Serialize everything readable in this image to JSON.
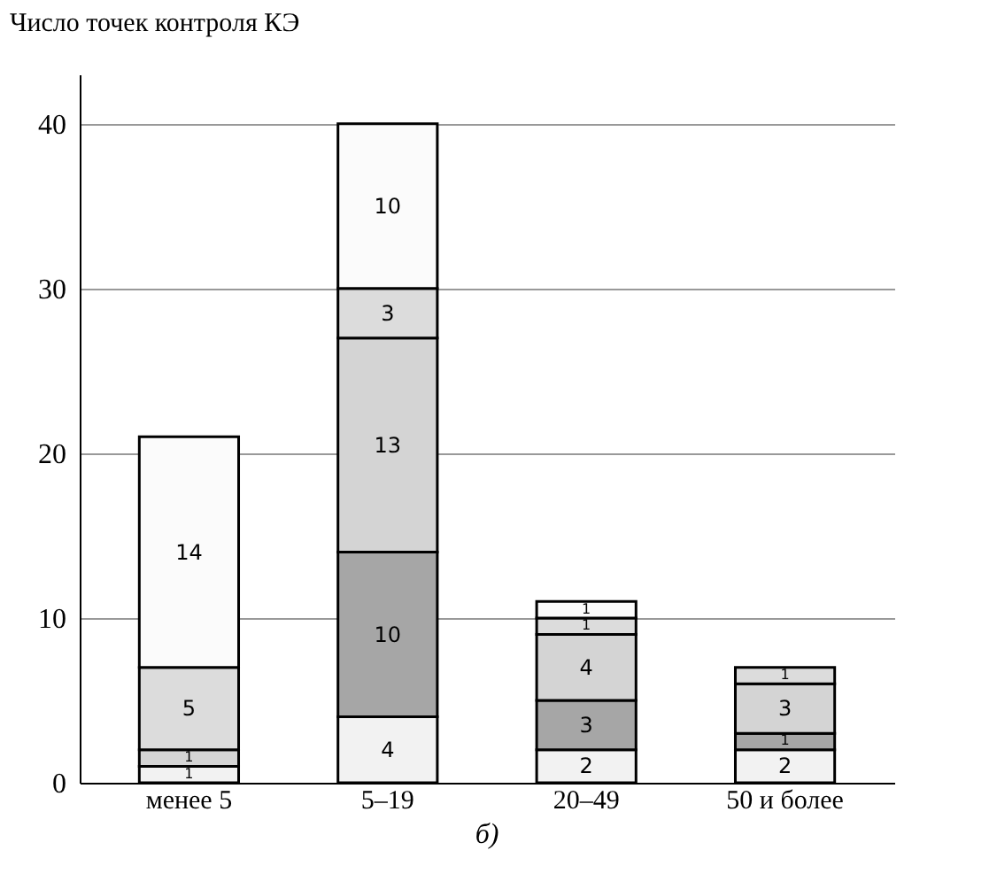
{
  "chart_data": {
    "type": "bar",
    "stacked": true,
    "ylabel": "Число точек контроля КЭ",
    "annotations": [
      "б)"
    ],
    "categories": [
      "менее 5",
      "5–19",
      "20–49",
      "50 и более"
    ],
    "series": [
      {
        "color": "#f2f2f2",
        "values": [
          1,
          4,
          2,
          2
        ]
      },
      {
        "color": "#a6a6a6",
        "values": [
          null,
          10,
          3,
          1
        ]
      },
      {
        "color": "#d4d4d4",
        "values": [
          1,
          13,
          4,
          3
        ]
      },
      {
        "color": "#dcdcdc",
        "values": [
          5,
          3,
          1,
          1
        ]
      },
      {
        "color": "#fbfbfb",
        "values": [
          14,
          10,
          1,
          null
        ]
      }
    ],
    "data_labels": true,
    "ylim": [
      0,
      43
    ],
    "yticks": [
      0,
      10,
      20,
      30,
      40
    ],
    "grid": "y",
    "legend": false
  }
}
